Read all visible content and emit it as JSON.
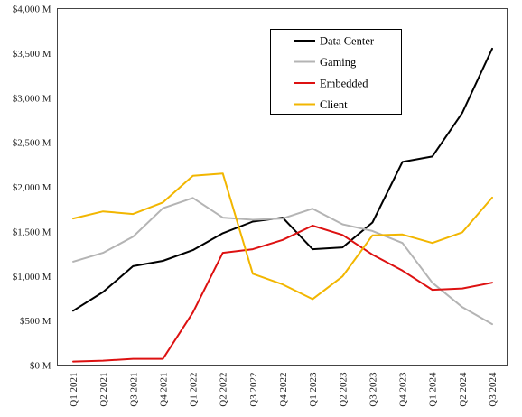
{
  "chart_data": {
    "type": "line",
    "title": "",
    "xlabel": "",
    "ylabel": "",
    "ylim": [
      0,
      4000
    ],
    "yticks": [
      0,
      500,
      1000,
      1500,
      2000,
      2500,
      3000,
      3500,
      4000
    ],
    "ytick_labels": [
      "$0 M",
      "$500 M",
      "$1,000 M",
      "$1,500 M",
      "$2,000 M",
      "$2,500 M",
      "$3,000 M",
      "$3,500 M",
      "$4,000 M"
    ],
    "categories": [
      "Q1 2021",
      "Q2 2021",
      "Q3 2021",
      "Q4 2021",
      "Q1 2022",
      "Q2 2022",
      "Q3 2022",
      "Q4 2022",
      "Q1 2023",
      "Q2 2023",
      "Q3 2023",
      "Q4 2023",
      "Q1 2024",
      "Q2 2024",
      "Q3 2024"
    ],
    "grid": false,
    "legend_position": "top-right",
    "series": [
      {
        "name": "Data Center",
        "color": "#000000",
        "values": [
          610,
          820,
          1110,
          1170,
          1290,
          1480,
          1610,
          1655,
          1300,
          1320,
          1600,
          2280,
          2340,
          2830,
          3550
        ]
      },
      {
        "name": "Gaming",
        "color": "#b4b4b4",
        "values": [
          1160,
          1260,
          1440,
          1760,
          1875,
          1655,
          1630,
          1645,
          1755,
          1580,
          1505,
          1370,
          925,
          650,
          460
        ]
      },
      {
        "name": "Embedded",
        "color": "#dd1111",
        "values": [
          40,
          50,
          70,
          70,
          590,
          1260,
          1300,
          1405,
          1565,
          1460,
          1240,
          1060,
          845,
          860,
          925
        ]
      },
      {
        "name": "Client",
        "color": "#f2b600",
        "values": [
          1645,
          1725,
          1695,
          1825,
          2125,
          2150,
          1025,
          905,
          740,
          995,
          1455,
          1465,
          1370,
          1490,
          1880
        ]
      }
    ]
  }
}
